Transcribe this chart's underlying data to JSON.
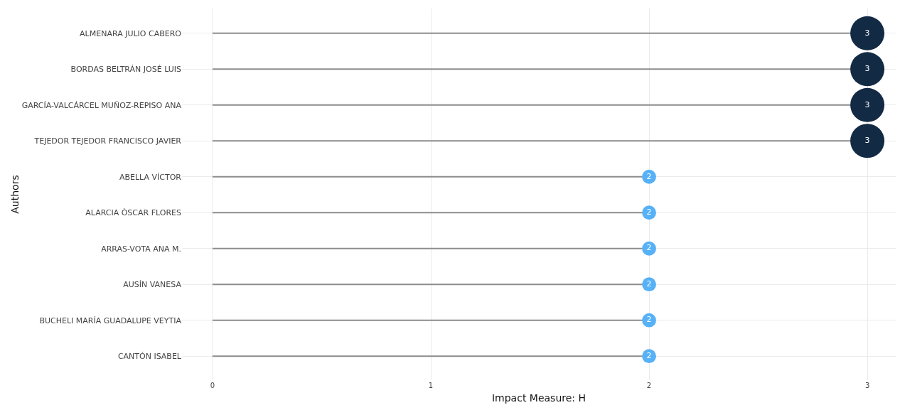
{
  "chart_data": {
    "type": "lollipop",
    "orientation": "horizontal",
    "xlabel": "Impact Measure: H",
    "ylabel": "Authors",
    "categories": [
      "ALMENARA JULIO CABERO",
      "BORDAS BELTRÁN JOSÉ LUIS",
      "GARCÍA-VALCÁRCEL MUÑOZ-REPISO ANA",
      "TEJEDOR TEJEDOR FRANCISCO JAVIER",
      "ABELLA VÍCTOR",
      "ALARCIA ÒSCAR FLORES",
      "ARRAS-VOTA ANA M.",
      "AUSÍN VANESA",
      "BUCHELI MARÍA GUADALUPE VEYTIA",
      "CANTÓN ISABEL"
    ],
    "values": [
      3,
      3,
      3,
      3,
      2,
      2,
      2,
      2,
      2,
      2
    ],
    "colors": [
      "#132a45",
      "#132a45",
      "#132a45",
      "#132a45",
      "#56b1f7",
      "#56b1f7",
      "#56b1f7",
      "#56b1f7",
      "#56b1f7",
      "#56b1f7"
    ],
    "sizes": [
      1,
      1,
      1,
      1,
      0.17,
      0.17,
      0.17,
      0.17,
      0.17,
      0.17
    ],
    "data_labels": true,
    "xlim": [
      -0.14,
      3.13
    ],
    "xticks": [
      0,
      1,
      2,
      3
    ],
    "grid": true,
    "marker": "circle"
  }
}
